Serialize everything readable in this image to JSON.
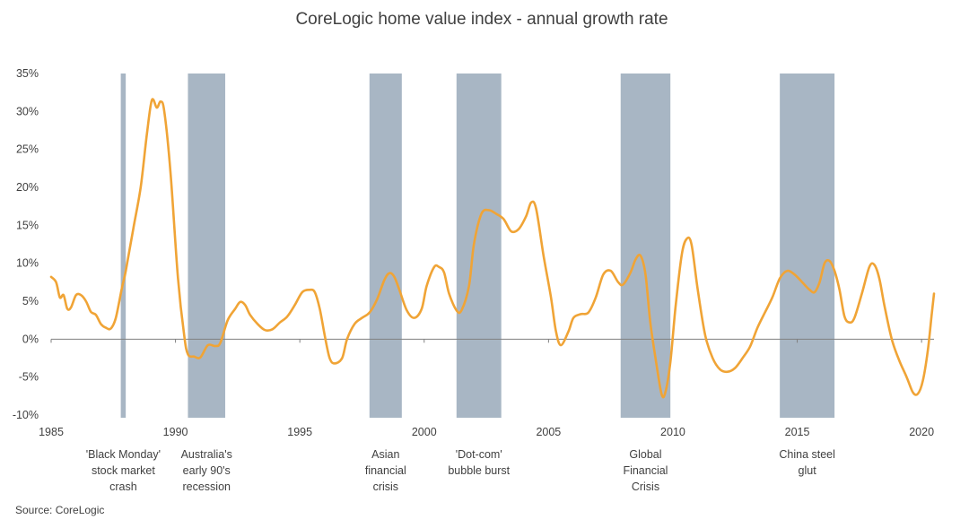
{
  "chart_data": {
    "type": "line",
    "title": "CoreLogic home value index - annual growth rate",
    "source": "Source: CoreLogic",
    "xlim": [
      1985,
      2020.5
    ],
    "ylim": [
      -10,
      35
    ],
    "x_ticks": [
      1985,
      1990,
      1995,
      2000,
      2005,
      2010,
      2015,
      2020
    ],
    "y_ticks": [
      {
        "value": 35,
        "label": "35%"
      },
      {
        "value": 30,
        "label": "30%"
      },
      {
        "value": 25,
        "label": "25%"
      },
      {
        "value": 20,
        "label": "20%"
      },
      {
        "value": 15,
        "label": "15%"
      },
      {
        "value": 10,
        "label": "10%"
      },
      {
        "value": 5,
        "label": "5%"
      },
      {
        "value": 0,
        "label": "0%"
      },
      {
        "value": -5,
        "label": "-5%"
      },
      {
        "value": -10,
        "label": "-10%"
      }
    ],
    "grid": false,
    "colors": {
      "line": "#f0a436",
      "band": "#a8b6c4",
      "axis": "#7f7f7f"
    },
    "bands": [
      {
        "start": 1987.8,
        "end": 1988.0,
        "lines": [
          "'Black Monday'",
          "stock market",
          "crash"
        ]
      },
      {
        "start": 1990.5,
        "end": 1992.0,
        "lines": [
          "Australia's",
          "early 90's",
          "recession"
        ]
      },
      {
        "start": 1997.8,
        "end": 1999.1,
        "lines": [
          "Asian",
          "financial",
          "crisis"
        ]
      },
      {
        "start": 2001.3,
        "end": 2003.1,
        "lines": [
          "'Dot-com'",
          "bubble burst"
        ]
      },
      {
        "start": 2007.9,
        "end": 2009.9,
        "lines": [
          "Global",
          "Financial",
          "Crisis"
        ]
      },
      {
        "start": 2014.3,
        "end": 2016.5,
        "lines": [
          "China steel",
          "glut"
        ]
      }
    ],
    "series": [
      {
        "points": [
          [
            1985.0,
            8.2
          ],
          [
            1985.2,
            7.5
          ],
          [
            1985.35,
            5.5
          ],
          [
            1985.5,
            5.8
          ],
          [
            1985.65,
            4.0
          ],
          [
            1985.8,
            4.2
          ],
          [
            1986.0,
            5.8
          ],
          [
            1986.2,
            5.8
          ],
          [
            1986.4,
            5.0
          ],
          [
            1986.6,
            3.6
          ],
          [
            1986.8,
            3.2
          ],
          [
            1987.0,
            2.0
          ],
          [
            1987.2,
            1.5
          ],
          [
            1987.4,
            1.4
          ],
          [
            1987.6,
            2.8
          ],
          [
            1987.85,
            6.8
          ],
          [
            1988.0,
            9.0
          ],
          [
            1988.3,
            14.5
          ],
          [
            1988.6,
            20.0
          ],
          [
            1988.85,
            27.0
          ],
          [
            1989.05,
            31.5
          ],
          [
            1989.25,
            30.5
          ],
          [
            1989.4,
            31.3
          ],
          [
            1989.55,
            30.0
          ],
          [
            1989.8,
            22.0
          ],
          [
            1990.1,
            8.0
          ],
          [
            1990.35,
            0.5
          ],
          [
            1990.5,
            -2.0
          ],
          [
            1990.75,
            -2.3
          ],
          [
            1991.0,
            -2.4
          ],
          [
            1991.3,
            -0.8
          ],
          [
            1991.6,
            -0.9
          ],
          [
            1991.8,
            -0.5
          ],
          [
            1992.1,
            2.5
          ],
          [
            1992.4,
            4.0
          ],
          [
            1992.6,
            4.9
          ],
          [
            1992.8,
            4.5
          ],
          [
            1993.0,
            3.2
          ],
          [
            1993.3,
            2.0
          ],
          [
            1993.6,
            1.2
          ],
          [
            1993.9,
            1.3
          ],
          [
            1994.2,
            2.2
          ],
          [
            1994.5,
            3.0
          ],
          [
            1994.8,
            4.5
          ],
          [
            1995.1,
            6.2
          ],
          [
            1995.4,
            6.5
          ],
          [
            1995.6,
            6.2
          ],
          [
            1995.8,
            4.0
          ],
          [
            1996.0,
            0.5
          ],
          [
            1996.2,
            -2.5
          ],
          [
            1996.4,
            -3.2
          ],
          [
            1996.7,
            -2.5
          ],
          [
            1996.9,
            0.0
          ],
          [
            1997.2,
            2.0
          ],
          [
            1997.5,
            2.8
          ],
          [
            1997.8,
            3.5
          ],
          [
            1998.1,
            5.2
          ],
          [
            1998.4,
            7.8
          ],
          [
            1998.6,
            8.7
          ],
          [
            1998.8,
            8.2
          ],
          [
            1999.0,
            6.5
          ],
          [
            1999.3,
            3.8
          ],
          [
            1999.6,
            2.8
          ],
          [
            1999.9,
            4.0
          ],
          [
            2000.1,
            7.0
          ],
          [
            2000.4,
            9.5
          ],
          [
            2000.6,
            9.5
          ],
          [
            2000.8,
            8.8
          ],
          [
            2001.0,
            6.0
          ],
          [
            2001.3,
            3.8
          ],
          [
            2001.5,
            3.8
          ],
          [
            2001.8,
            7.0
          ],
          [
            2002.0,
            12.5
          ],
          [
            2002.3,
            16.5
          ],
          [
            2002.6,
            17.0
          ],
          [
            2002.9,
            16.5
          ],
          [
            2003.2,
            15.8
          ],
          [
            2003.5,
            14.2
          ],
          [
            2003.8,
            14.5
          ],
          [
            2004.1,
            16.2
          ],
          [
            2004.3,
            18.0
          ],
          [
            2004.5,
            17.2
          ],
          [
            2004.8,
            11.0
          ],
          [
            2005.1,
            5.5
          ],
          [
            2005.3,
            1.0
          ],
          [
            2005.5,
            -0.8
          ],
          [
            2005.8,
            1.0
          ],
          [
            2006.0,
            2.8
          ],
          [
            2006.3,
            3.3
          ],
          [
            2006.6,
            3.5
          ],
          [
            2006.9,
            5.5
          ],
          [
            2007.2,
            8.5
          ],
          [
            2007.5,
            9.0
          ],
          [
            2007.8,
            7.5
          ],
          [
            2008.0,
            7.2
          ],
          [
            2008.3,
            8.8
          ],
          [
            2008.5,
            10.5
          ],
          [
            2008.7,
            11.0
          ],
          [
            2008.9,
            8.5
          ],
          [
            2009.1,
            2.0
          ],
          [
            2009.35,
            -3.5
          ],
          [
            2009.55,
            -7.3
          ],
          [
            2009.7,
            -7.0
          ],
          [
            2009.9,
            -3.0
          ],
          [
            2010.1,
            4.0
          ],
          [
            2010.35,
            11.0
          ],
          [
            2010.55,
            13.2
          ],
          [
            2010.75,
            12.5
          ],
          [
            2011.0,
            6.5
          ],
          [
            2011.3,
            0.5
          ],
          [
            2011.6,
            -2.5
          ],
          [
            2011.9,
            -4.0
          ],
          [
            2012.2,
            -4.3
          ],
          [
            2012.5,
            -3.8
          ],
          [
            2012.8,
            -2.5
          ],
          [
            2013.1,
            -1.0
          ],
          [
            2013.4,
            1.5
          ],
          [
            2013.7,
            3.5
          ],
          [
            2014.0,
            5.5
          ],
          [
            2014.3,
            8.0
          ],
          [
            2014.6,
            9.0
          ],
          [
            2014.9,
            8.5
          ],
          [
            2015.2,
            7.5
          ],
          [
            2015.5,
            6.5
          ],
          [
            2015.7,
            6.2
          ],
          [
            2015.9,
            7.5
          ],
          [
            2016.1,
            10.0
          ],
          [
            2016.3,
            10.3
          ],
          [
            2016.5,
            9.0
          ],
          [
            2016.7,
            6.5
          ],
          [
            2016.9,
            3.0
          ],
          [
            2017.1,
            2.2
          ],
          [
            2017.3,
            2.8
          ],
          [
            2017.6,
            6.0
          ],
          [
            2017.9,
            9.5
          ],
          [
            2018.1,
            9.8
          ],
          [
            2018.3,
            8.0
          ],
          [
            2018.5,
            4.5
          ],
          [
            2018.8,
            0.0
          ],
          [
            2019.1,
            -2.8
          ],
          [
            2019.4,
            -5.0
          ],
          [
            2019.65,
            -7.0
          ],
          [
            2019.85,
            -7.2
          ],
          [
            2020.05,
            -5.5
          ],
          [
            2020.25,
            -1.5
          ],
          [
            2020.4,
            3.0
          ],
          [
            2020.5,
            6.0
          ]
        ]
      }
    ]
  }
}
